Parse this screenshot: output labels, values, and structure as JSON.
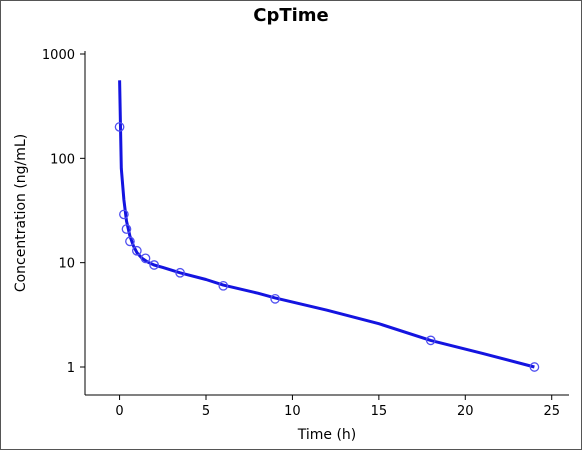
{
  "chart_data": {
    "type": "line",
    "title": "CpTime",
    "xlabel": "Time (h)",
    "ylabel": "Concentration (ng/mL)",
    "xlim": [
      -2,
      26
    ],
    "ylim": [
      0.5,
      1000
    ],
    "y_scale": "log",
    "x_ticks": [
      0,
      5,
      10,
      15,
      20,
      25
    ],
    "y_ticks": [
      1,
      10,
      100,
      1000
    ],
    "grid": false,
    "colors": {
      "line": "#1414e0",
      "markers": "#5050f0"
    },
    "series": [
      {
        "type": "line",
        "x": [
          0,
          0.1,
          0.25,
          0.4,
          0.6,
          0.8,
          1.0,
          1.3,
          1.6,
          2.0,
          2.5,
          3.5,
          5,
          6,
          8,
          9,
          12,
          15,
          18,
          21,
          24
        ],
        "y": [
          560,
          80,
          40,
          25,
          18,
          14.5,
          12.5,
          11,
          10.2,
          9.5,
          9.0,
          8.0,
          6.9,
          6.1,
          5.1,
          4.6,
          3.5,
          2.6,
          1.8,
          1.35,
          1.0
        ]
      },
      {
        "type": "scatter",
        "marker": "open-circle",
        "x": [
          0,
          0.25,
          0.4,
          0.6,
          1.0,
          1.5,
          2.0,
          3.5,
          6.0,
          9.0,
          18.0,
          24.0
        ],
        "y": [
          200,
          29,
          21,
          16,
          13,
          11,
          9.5,
          8.0,
          6.0,
          4.5,
          1.8,
          1.0
        ]
      }
    ]
  }
}
